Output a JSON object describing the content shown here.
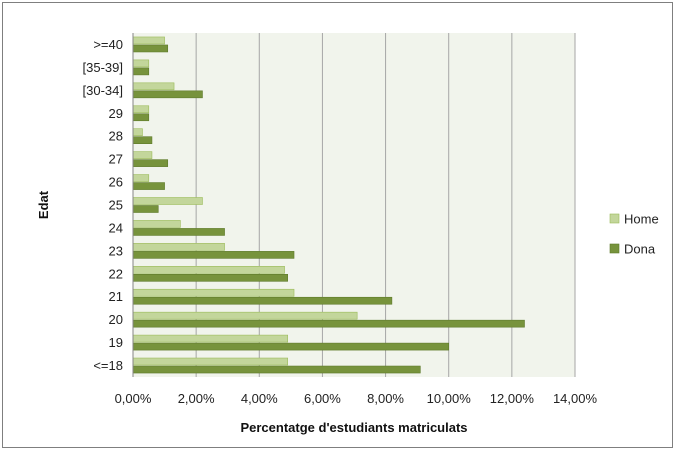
{
  "chart_data": {
    "type": "bar",
    "orientation": "horizontal",
    "categories": [
      ">=40",
      "[35-39]",
      "[30-34]",
      "29",
      "28",
      "27",
      "26",
      "25",
      "24",
      "23",
      "22",
      "21",
      "20",
      "19",
      "<=18"
    ],
    "series": [
      {
        "name": "Home",
        "color": "#c3d69b",
        "values": [
          1.0,
          0.5,
          1.3,
          0.5,
          0.3,
          0.6,
          0.5,
          2.2,
          1.5,
          2.9,
          4.8,
          5.1,
          7.1,
          4.9,
          4.9
        ]
      },
      {
        "name": "Dona",
        "color": "#77933c",
        "values": [
          1.1,
          0.5,
          2.2,
          0.5,
          0.6,
          1.1,
          1.0,
          0.8,
          2.9,
          5.1,
          4.9,
          8.2,
          12.4,
          10.0,
          9.1
        ]
      }
    ],
    "x_ticks": [
      "0,00%",
      "2,00%",
      "4,00%",
      "6,00%",
      "8,00%",
      "10,00%",
      "12,00%",
      "14,00%"
    ],
    "xlim": [
      0,
      14
    ],
    "xlabel": "Percentatge d'estudiants matriculats",
    "ylabel": "Edat",
    "title": "",
    "grid": "vertical",
    "legend_position": "right",
    "plot_background": "#f1f4ec",
    "grid_color": "#a6a6a6"
  }
}
